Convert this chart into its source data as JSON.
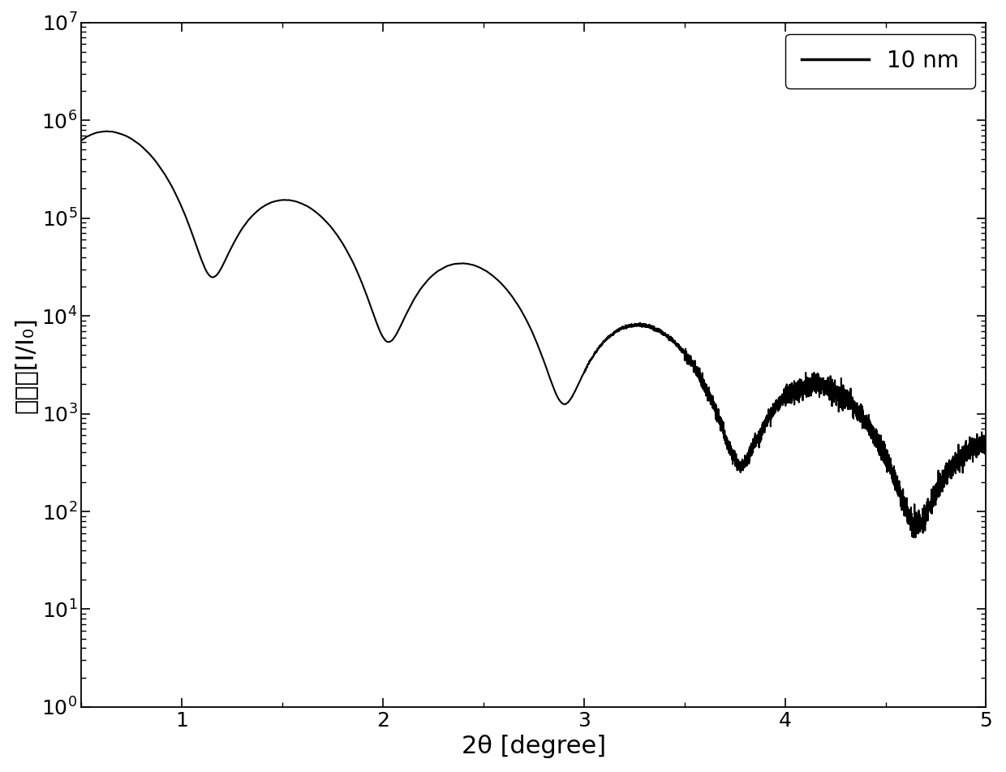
{
  "xlabel": "2θ [degree]",
  "ylabel": "反射率[I/I₀]",
  "legend_label": "10 nm",
  "xlim": [
    0.5,
    5.0
  ],
  "ylim_log": [
    1,
    10000000.0
  ],
  "line_color": "#000000",
  "background_color": "#ffffff",
  "label_fontsize": 22,
  "tick_fontsize": 18,
  "legend_fontsize": 20,
  "linewidth": 1.5
}
